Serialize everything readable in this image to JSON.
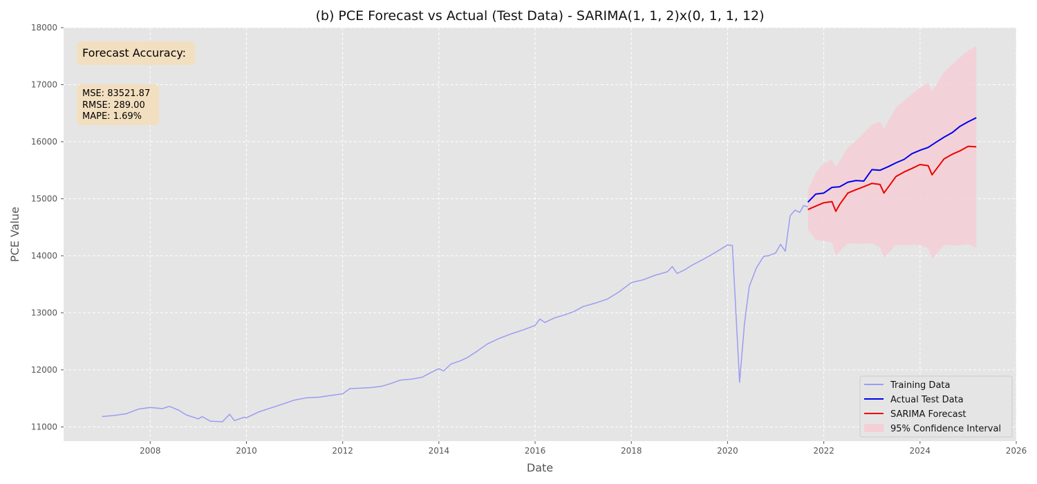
{
  "chart_data": {
    "type": "line",
    "title": "(b) PCE Forecast vs Actual (Test Data) - SARIMA(1, 1, 2)x(0, 1, 1, 12)",
    "xlabel": "Date",
    "ylabel": "PCE Value",
    "xlim": [
      2006.2,
      2026.0
    ],
    "ylim": [
      10750,
      18000
    ],
    "x_ticks": [
      2008,
      2010,
      2012,
      2014,
      2016,
      2018,
      2020,
      2022,
      2024,
      2026
    ],
    "y_ticks": [
      11000,
      12000,
      13000,
      14000,
      15000,
      16000,
      17000,
      18000
    ],
    "grid": true,
    "legend_position": "lower-right",
    "accuracy_box": {
      "title": "Forecast Accuracy:",
      "mse": "MSE: 83521.87",
      "rmse": "RMSE: 289.00",
      "mape": "MAPE: 1.69%"
    },
    "colors": {
      "training": "#9b9bf2",
      "actual": "#0000ee",
      "forecast": "#ee0000",
      "ci": "#f5cfd6",
      "plot_bg": "#e5e5e5",
      "grid": "#ffffff",
      "box_bg": "#f2dfc0"
    },
    "series": [
      {
        "name": "Training Data",
        "points": [
          [
            2007.0,
            11180
          ],
          [
            2007.25,
            11200
          ],
          [
            2007.5,
            11230
          ],
          [
            2007.75,
            11310
          ],
          [
            2008.0,
            11340
          ],
          [
            2008.25,
            11320
          ],
          [
            2008.4,
            11360
          ],
          [
            2008.6,
            11290
          ],
          [
            2008.75,
            11210
          ],
          [
            2009.0,
            11140
          ],
          [
            2009.08,
            11180
          ],
          [
            2009.25,
            11100
          ],
          [
            2009.5,
            11090
          ],
          [
            2009.65,
            11220
          ],
          [
            2009.75,
            11110
          ],
          [
            2009.95,
            11170
          ],
          [
            2010.0,
            11160
          ],
          [
            2010.25,
            11260
          ],
          [
            2010.5,
            11330
          ],
          [
            2010.75,
            11400
          ],
          [
            2011.0,
            11470
          ],
          [
            2011.25,
            11510
          ],
          [
            2011.5,
            11520
          ],
          [
            2011.75,
            11550
          ],
          [
            2012.0,
            11580
          ],
          [
            2012.15,
            11670
          ],
          [
            2012.4,
            11680
          ],
          [
            2012.6,
            11690
          ],
          [
            2012.8,
            11710
          ],
          [
            2013.0,
            11760
          ],
          [
            2013.2,
            11820
          ],
          [
            2013.45,
            11840
          ],
          [
            2013.65,
            11870
          ],
          [
            2013.85,
            11960
          ],
          [
            2014.0,
            12020
          ],
          [
            2014.1,
            11980
          ],
          [
            2014.25,
            12100
          ],
          [
            2014.45,
            12160
          ],
          [
            2014.6,
            12220
          ],
          [
            2014.8,
            12330
          ],
          [
            2015.0,
            12450
          ],
          [
            2015.25,
            12550
          ],
          [
            2015.5,
            12630
          ],
          [
            2015.75,
            12700
          ],
          [
            2016.0,
            12780
          ],
          [
            2016.1,
            12890
          ],
          [
            2016.2,
            12830
          ],
          [
            2016.4,
            12910
          ],
          [
            2016.6,
            12960
          ],
          [
            2016.8,
            13020
          ],
          [
            2017.0,
            13110
          ],
          [
            2017.25,
            13170
          ],
          [
            2017.5,
            13240
          ],
          [
            2017.75,
            13370
          ],
          [
            2018.0,
            13530
          ],
          [
            2018.25,
            13580
          ],
          [
            2018.5,
            13660
          ],
          [
            2018.75,
            13720
          ],
          [
            2018.85,
            13810
          ],
          [
            2018.95,
            13690
          ],
          [
            2019.1,
            13750
          ],
          [
            2019.25,
            13830
          ],
          [
            2019.5,
            13940
          ],
          [
            2019.75,
            14060
          ],
          [
            2020.0,
            14190
          ],
          [
            2020.1,
            14180
          ],
          [
            2020.25,
            11780
          ],
          [
            2020.35,
            12800
          ],
          [
            2020.45,
            13460
          ],
          [
            2020.6,
            13790
          ],
          [
            2020.75,
            13990
          ],
          [
            2020.85,
            14000
          ],
          [
            2021.0,
            14050
          ],
          [
            2021.1,
            14200
          ],
          [
            2021.2,
            14080
          ],
          [
            2021.3,
            14700
          ],
          [
            2021.4,
            14800
          ],
          [
            2021.5,
            14760
          ],
          [
            2021.58,
            14880
          ],
          [
            2021.67,
            14860
          ]
        ]
      },
      {
        "name": "Actual Test Data",
        "points": [
          [
            2021.67,
            14940
          ],
          [
            2021.83,
            15080
          ],
          [
            2022.0,
            15100
          ],
          [
            2022.17,
            15200
          ],
          [
            2022.33,
            15210
          ],
          [
            2022.5,
            15290
          ],
          [
            2022.67,
            15320
          ],
          [
            2022.83,
            15310
          ],
          [
            2023.0,
            15510
          ],
          [
            2023.17,
            15500
          ],
          [
            2023.33,
            15560
          ],
          [
            2023.5,
            15630
          ],
          [
            2023.67,
            15690
          ],
          [
            2023.83,
            15790
          ],
          [
            2024.0,
            15850
          ],
          [
            2024.17,
            15900
          ],
          [
            2024.33,
            15990
          ],
          [
            2024.5,
            16080
          ],
          [
            2024.67,
            16160
          ],
          [
            2024.83,
            16270
          ],
          [
            2025.0,
            16350
          ],
          [
            2025.17,
            16420
          ]
        ]
      },
      {
        "name": "SARIMA Forecast",
        "points": [
          [
            2021.67,
            14810
          ],
          [
            2021.83,
            14870
          ],
          [
            2022.0,
            14930
          ],
          [
            2022.17,
            14950
          ],
          [
            2022.25,
            14780
          ],
          [
            2022.33,
            14900
          ],
          [
            2022.5,
            15100
          ],
          [
            2022.67,
            15160
          ],
          [
            2022.83,
            15210
          ],
          [
            2023.0,
            15270
          ],
          [
            2023.17,
            15250
          ],
          [
            2023.25,
            15100
          ],
          [
            2023.5,
            15390
          ],
          [
            2023.67,
            15470
          ],
          [
            2023.83,
            15530
          ],
          [
            2024.0,
            15600
          ],
          [
            2024.17,
            15580
          ],
          [
            2024.25,
            15420
          ],
          [
            2024.5,
            15700
          ],
          [
            2024.67,
            15780
          ],
          [
            2024.83,
            15840
          ],
          [
            2025.0,
            15920
          ],
          [
            2025.17,
            15910
          ]
        ]
      }
    ],
    "confidence_interval": {
      "name": "95% Confidence Interval",
      "upper": [
        [
          2021.67,
          15150
        ],
        [
          2021.83,
          15450
        ],
        [
          2022.0,
          15620
        ],
        [
          2022.17,
          15680
        ],
        [
          2022.25,
          15560
        ],
        [
          2022.5,
          15900
        ],
        [
          2022.75,
          16080
        ],
        [
          2023.0,
          16300
        ],
        [
          2023.17,
          16350
        ],
        [
          2023.25,
          16230
        ],
        [
          2023.5,
          16600
        ],
        [
          2023.75,
          16780
        ],
        [
          2024.0,
          16950
        ],
        [
          2024.17,
          17030
        ],
        [
          2024.25,
          16880
        ],
        [
          2024.5,
          17220
        ],
        [
          2024.75,
          17420
        ],
        [
          2025.0,
          17600
        ],
        [
          2025.17,
          17670
        ]
      ],
      "lower": [
        [
          2021.67,
          14460
        ],
        [
          2021.83,
          14280
        ],
        [
          2022.0,
          14260
        ],
        [
          2022.17,
          14230
        ],
        [
          2022.25,
          14010
        ],
        [
          2022.5,
          14220
        ],
        [
          2022.75,
          14210
        ],
        [
          2023.0,
          14220
        ],
        [
          2023.17,
          14150
        ],
        [
          2023.25,
          13960
        ],
        [
          2023.5,
          14190
        ],
        [
          2023.75,
          14190
        ],
        [
          2024.0,
          14190
        ],
        [
          2024.17,
          14130
        ],
        [
          2024.25,
          13940
        ],
        [
          2024.5,
          14190
        ],
        [
          2024.75,
          14180
        ],
        [
          2025.0,
          14200
        ],
        [
          2025.17,
          14140
        ]
      ]
    }
  }
}
